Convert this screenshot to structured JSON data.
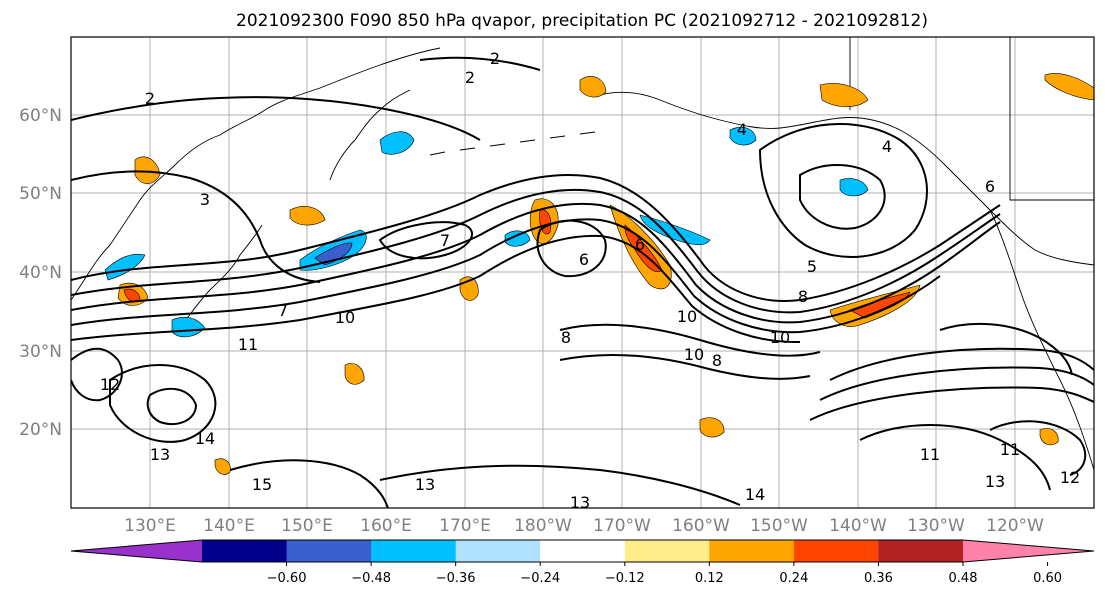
{
  "figure": {
    "title": "2021092300 F090 850 hPa qvapor, precipitation PC (2021092712 - 2021092812)"
  },
  "map": {
    "lat_labels": [
      "60°N",
      "50°N",
      "40°N",
      "30°N",
      "20°N"
    ],
    "lon_labels": [
      "130°E",
      "140°E",
      "150°E",
      "160°E",
      "170°E",
      "180°W",
      "170°W",
      "160°W",
      "150°W",
      "140°W",
      "130°W",
      "120°W"
    ],
    "contour_labels": [
      "2",
      "2",
      "2",
      "3",
      "4",
      "4",
      "5",
      "6",
      "6",
      "6",
      "7",
      "7",
      "8",
      "8",
      "8",
      "10",
      "10",
      "10",
      "10",
      "11",
      "11",
      "11",
      "12",
      "12",
      "13",
      "13",
      "13",
      "13",
      "14",
      "14",
      "15"
    ]
  },
  "colorbar": {
    "tick_labels": [
      "−0.60",
      "−0.48",
      "−0.36",
      "−0.24",
      "−0.12",
      "0.12",
      "0.24",
      "0.36",
      "0.48",
      "0.60"
    ],
    "colors": [
      "#9932cc",
      "#00008b",
      "#3a5fcd",
      "#00bfff",
      "#b0e2ff",
      "#ffffff",
      "#ffec8b",
      "#ffa500",
      "#ff4500",
      "#b22222",
      "#ff82ab"
    ]
  }
}
